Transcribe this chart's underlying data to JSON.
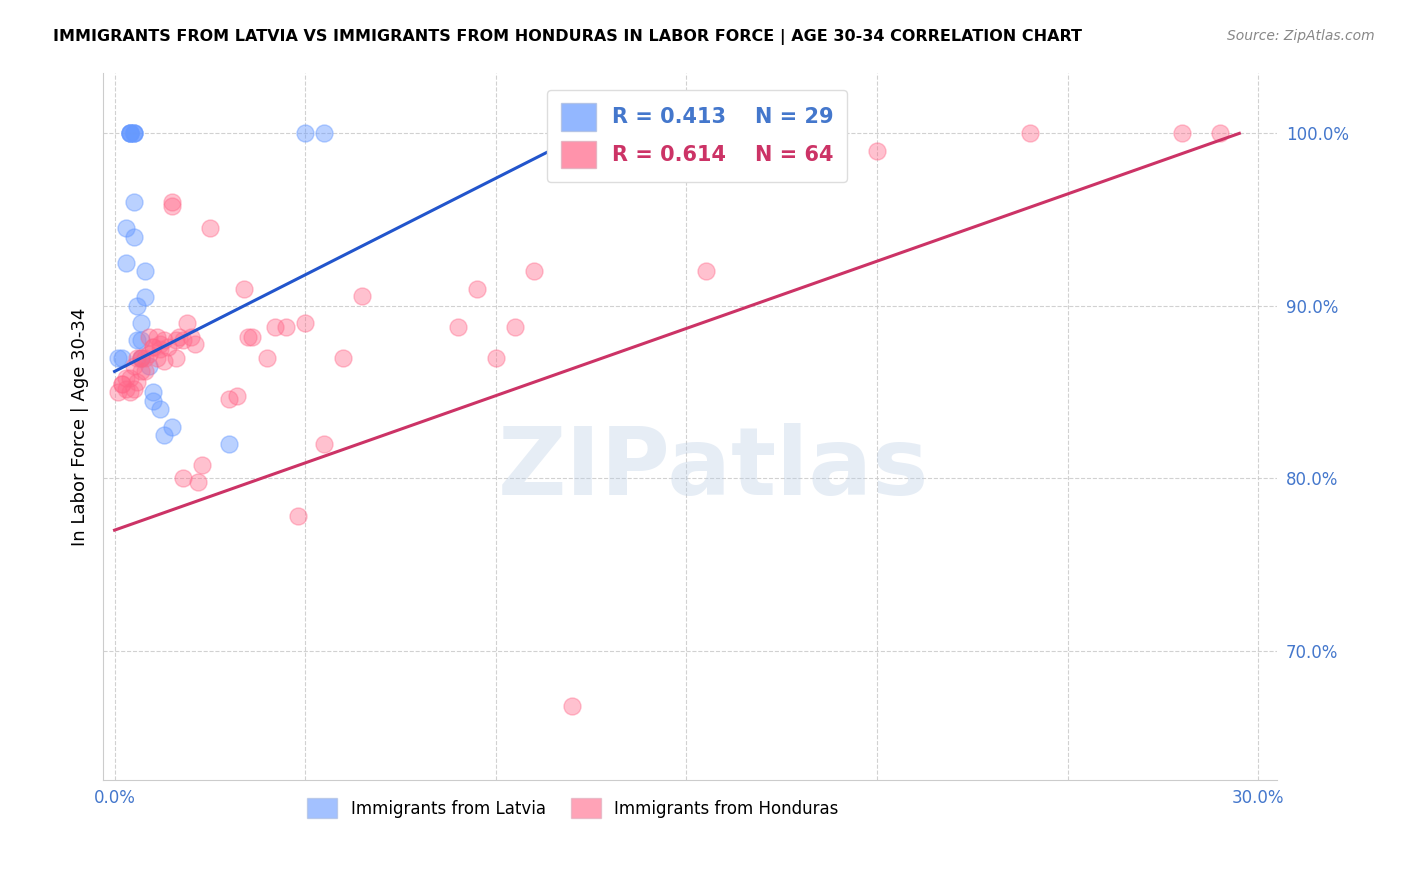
{
  "title": "IMMIGRANTS FROM LATVIA VS IMMIGRANTS FROM HONDURAS IN LABOR FORCE | AGE 30-34 CORRELATION CHART",
  "source": "Source: ZipAtlas.com",
  "ylabel": "In Labor Force | Age 30-34",
  "xlim": [
    -0.003,
    0.305
  ],
  "ylim": [
    0.625,
    1.035
  ],
  "xtick_positions": [
    0.0,
    0.05,
    0.1,
    0.15,
    0.2,
    0.25,
    0.3
  ],
  "xticklabels": [
    "0.0%",
    "",
    "",
    "",
    "",
    "",
    "30.0%"
  ],
  "ytick_positions": [
    0.7,
    0.8,
    0.9,
    1.0
  ],
  "yticklabels": [
    "70.0%",
    "80.0%",
    "90.0%",
    "100.0%"
  ],
  "latvia_color": "#6699ff",
  "honduras_color": "#ff6688",
  "latvia_line_color": "#2255cc",
  "honduras_line_color": "#cc3366",
  "latvia_R": 0.413,
  "latvia_N": 29,
  "honduras_R": 0.614,
  "honduras_N": 64,
  "watermark": "ZIPatlas",
  "latvia_x": [
    0.001,
    0.002,
    0.003,
    0.003,
    0.004,
    0.004,
    0.004,
    0.004,
    0.005,
    0.005,
    0.005,
    0.005,
    0.005,
    0.006,
    0.006,
    0.007,
    0.007,
    0.007,
    0.008,
    0.008,
    0.009,
    0.01,
    0.01,
    0.012,
    0.013,
    0.015,
    0.03,
    0.05,
    0.055
  ],
  "latvia_y": [
    0.87,
    0.87,
    0.925,
    0.945,
    1.0,
    1.0,
    1.0,
    1.0,
    1.0,
    1.0,
    1.0,
    0.96,
    0.94,
    0.9,
    0.88,
    0.89,
    0.88,
    0.87,
    0.92,
    0.905,
    0.865,
    0.85,
    0.845,
    0.84,
    0.825,
    0.83,
    0.82,
    1.0,
    1.0
  ],
  "honduras_x": [
    0.001,
    0.002,
    0.002,
    0.003,
    0.003,
    0.004,
    0.004,
    0.005,
    0.005,
    0.006,
    0.006,
    0.007,
    0.007,
    0.007,
    0.008,
    0.008,
    0.009,
    0.009,
    0.01,
    0.01,
    0.011,
    0.011,
    0.012,
    0.012,
    0.013,
    0.013,
    0.014,
    0.015,
    0.015,
    0.016,
    0.016,
    0.017,
    0.018,
    0.018,
    0.019,
    0.02,
    0.021,
    0.022,
    0.023,
    0.025,
    0.03,
    0.032,
    0.034,
    0.035,
    0.036,
    0.04,
    0.042,
    0.045,
    0.048,
    0.05,
    0.055,
    0.06,
    0.065,
    0.09,
    0.095,
    0.1,
    0.105,
    0.11,
    0.12,
    0.155,
    0.2,
    0.24,
    0.28,
    0.29
  ],
  "honduras_y": [
    0.85,
    0.855,
    0.855,
    0.852,
    0.858,
    0.85,
    0.858,
    0.852,
    0.865,
    0.856,
    0.87,
    0.862,
    0.87,
    0.87,
    0.862,
    0.87,
    0.872,
    0.882,
    0.876,
    0.876,
    0.87,
    0.882,
    0.878,
    0.875,
    0.868,
    0.88,
    0.876,
    0.96,
    0.958,
    0.87,
    0.88,
    0.882,
    0.8,
    0.88,
    0.89,
    0.882,
    0.878,
    0.798,
    0.808,
    0.945,
    0.846,
    0.848,
    0.91,
    0.882,
    0.882,
    0.87,
    0.888,
    0.888,
    0.778,
    0.89,
    0.82,
    0.87,
    0.906,
    0.888,
    0.91,
    0.87,
    0.888,
    0.92,
    0.668,
    0.92,
    0.99,
    1.0,
    1.0,
    1.0
  ],
  "latvia_line_x": [
    0.0,
    0.125
  ],
  "latvia_line_y": [
    0.862,
    1.002
  ],
  "honduras_line_x": [
    0.0,
    0.295
  ],
  "honduras_line_y": [
    0.77,
    1.0
  ]
}
